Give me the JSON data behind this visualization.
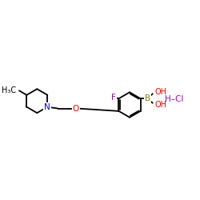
{
  "background_color": "#ffffff",
  "lw": 1.3,
  "atom_colors": {
    "N": "#0000cc",
    "O": "#ff0000",
    "F": "#aa00aa",
    "B": "#808000",
    "Cl": "#aa00aa",
    "C": "#000000"
  },
  "xlim": [
    0,
    10
  ],
  "ylim": [
    3,
    8
  ],
  "figsize": [
    2.5,
    2.5
  ],
  "dpi": 100
}
